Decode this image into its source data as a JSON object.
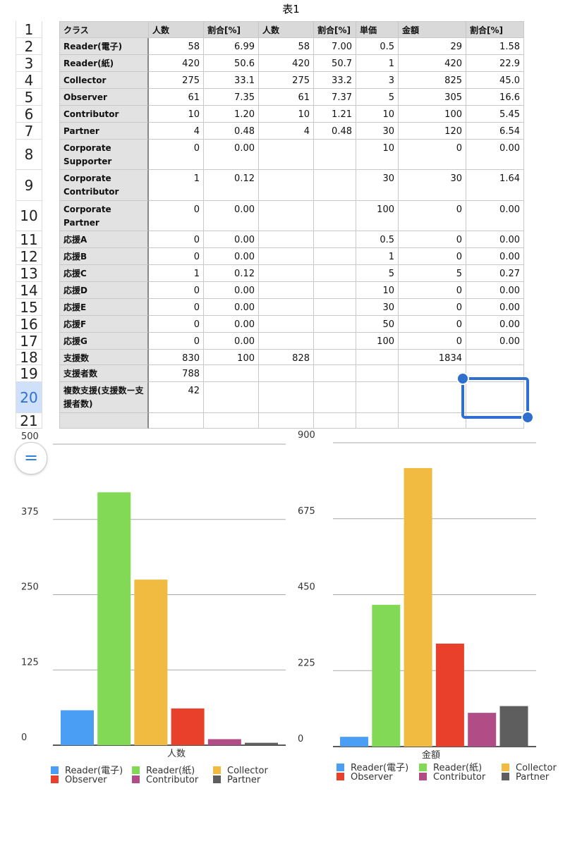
{
  "title": "表1",
  "table": {
    "row_numbers": [
      1,
      2,
      3,
      4,
      5,
      6,
      7,
      8,
      9,
      10,
      11,
      12,
      13,
      14,
      15,
      16,
      17,
      18,
      19,
      20,
      21
    ],
    "header": [
      "クラス",
      "人数",
      "割合[%]",
      "人数",
      "割合[%]",
      "単価",
      "金額",
      "割合[%]"
    ],
    "rows": [
      [
        "Reader(電子)",
        "58",
        "6.99",
        "58",
        "7.00",
        "0.5",
        "29",
        "1.58"
      ],
      [
        "Reader(紙)",
        "420",
        "50.6",
        "420",
        "50.7",
        "1",
        "420",
        "22.9"
      ],
      [
        "Collector",
        "275",
        "33.1",
        "275",
        "33.2",
        "3",
        "825",
        "45.0"
      ],
      [
        "Observer",
        "61",
        "7.35",
        "61",
        "7.37",
        "5",
        "305",
        "16.6"
      ],
      [
        "Contributor",
        "10",
        "1.20",
        "10",
        "1.21",
        "10",
        "100",
        "5.45"
      ],
      [
        "Partner",
        "4",
        "0.48",
        "4",
        "0.48",
        "30",
        "120",
        "6.54"
      ],
      [
        "Corporate Supporter",
        "0",
        "0.00",
        null,
        null,
        "10",
        "0",
        "0.00"
      ],
      [
        "Corporate Contributor",
        "1",
        "0.12",
        null,
        null,
        "30",
        "30",
        "1.64"
      ],
      [
        "Corporate Partner",
        "0",
        "0.00",
        null,
        null,
        "100",
        "0",
        "0.00"
      ],
      [
        "応援A",
        "0",
        "0.00",
        null,
        null,
        "0.5",
        "0",
        "0.00"
      ],
      [
        "応援B",
        "0",
        "0.00",
        null,
        null,
        "1",
        "0",
        "0.00"
      ],
      [
        "応援C",
        "1",
        "0.12",
        null,
        null,
        "5",
        "5",
        "0.27"
      ],
      [
        "応援D",
        "0",
        "0.00",
        null,
        null,
        "10",
        "0",
        "0.00"
      ],
      [
        "応援E",
        "0",
        "0.00",
        null,
        null,
        "30",
        "0",
        "0.00"
      ],
      [
        "応援F",
        "0",
        "0.00",
        null,
        null,
        "50",
        "0",
        "0.00"
      ],
      [
        "応援G",
        "0",
        "0.00",
        null,
        null,
        "100",
        "0",
        "0.00"
      ],
      [
        "支援数",
        "830",
        "100",
        "828",
        null,
        null,
        "1834",
        null
      ],
      [
        "支援者数",
        "788",
        null,
        null,
        null,
        null,
        null,
        null
      ],
      [
        "複数支援(支援数ー支援者数)",
        "42",
        null,
        null,
        null,
        null,
        null,
        null
      ],
      [
        null,
        null,
        null,
        null,
        null,
        null,
        null,
        null
      ]
    ]
  },
  "chart_data": [
    {
      "type": "bar",
      "categories": [
        "人数"
      ],
      "series": [
        {
          "name": "Reader(電子)",
          "color": "#4a9ff5",
          "values": [
            58
          ]
        },
        {
          "name": "Reader(紙)",
          "color": "#82d955",
          "values": [
            420
          ]
        },
        {
          "name": "Collector",
          "color": "#f0bb40",
          "values": [
            275
          ]
        },
        {
          "name": "Observer",
          "color": "#e8402a",
          "values": [
            61
          ]
        },
        {
          "name": "Contributor",
          "color": "#b24c87",
          "values": [
            10
          ]
        },
        {
          "name": "Partner",
          "color": "#5e5e5e",
          "values": [
            4
          ]
        }
      ],
      "ylim": [
        0,
        500
      ],
      "yticks": [
        0,
        125,
        250,
        375,
        500
      ],
      "grid": true
    },
    {
      "type": "bar",
      "categories": [
        "金額"
      ],
      "series": [
        {
          "name": "Reader(電子)",
          "color": "#4a9ff5",
          "values": [
            29
          ]
        },
        {
          "name": "Reader(紙)",
          "color": "#82d955",
          "values": [
            420
          ]
        },
        {
          "name": "Collector",
          "color": "#f0bb40",
          "values": [
            825
          ]
        },
        {
          "name": "Observer",
          "color": "#e8402a",
          "values": [
            305
          ]
        },
        {
          "name": "Contributor",
          "color": "#b24c87",
          "values": [
            100
          ]
        },
        {
          "name": "Partner",
          "color": "#5e5e5e",
          "values": [
            120
          ]
        }
      ],
      "ylim": [
        0,
        900
      ],
      "yticks": [
        0,
        225,
        450,
        675,
        900
      ],
      "grid": true
    }
  ]
}
